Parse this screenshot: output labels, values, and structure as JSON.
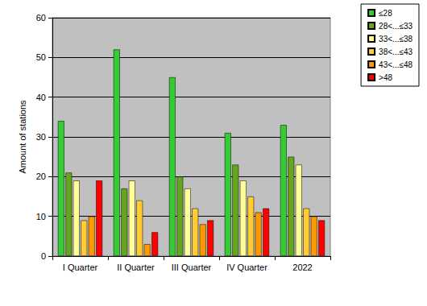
{
  "chart_data": {
    "type": "bar",
    "y_label": "Amount of stations",
    "categories": [
      "I Quarter",
      "II Quarter",
      "III Quarter",
      "IV Quarter",
      "2022"
    ],
    "series": [
      {
        "name": "≤28",
        "color": "#33cc33",
        "values": [
          34,
          52,
          45,
          31,
          33
        ]
      },
      {
        "name": "28<...≤33",
        "color": "#66a61e",
        "values": [
          21,
          17,
          20,
          23,
          25
        ]
      },
      {
        "name": "33<...≤38",
        "color": "#ffff99",
        "values": [
          19,
          19,
          17,
          19,
          23
        ]
      },
      {
        "name": "38<...≤43",
        "color": "#ffcc33",
        "values": [
          9,
          14,
          12,
          15,
          12
        ]
      },
      {
        "name": "43<...≤48",
        "color": "#ff9900",
        "values": [
          10,
          3,
          8,
          11,
          10
        ]
      },
      {
        "name": ">48",
        "color": "#ff0000",
        "values": [
          19,
          6,
          9,
          12,
          9
        ]
      }
    ],
    "ylim": [
      0,
      60
    ],
    "yticks": [
      0,
      10,
      20,
      30,
      40,
      50,
      60
    ],
    "grid": true,
    "legend": "upper right"
  }
}
